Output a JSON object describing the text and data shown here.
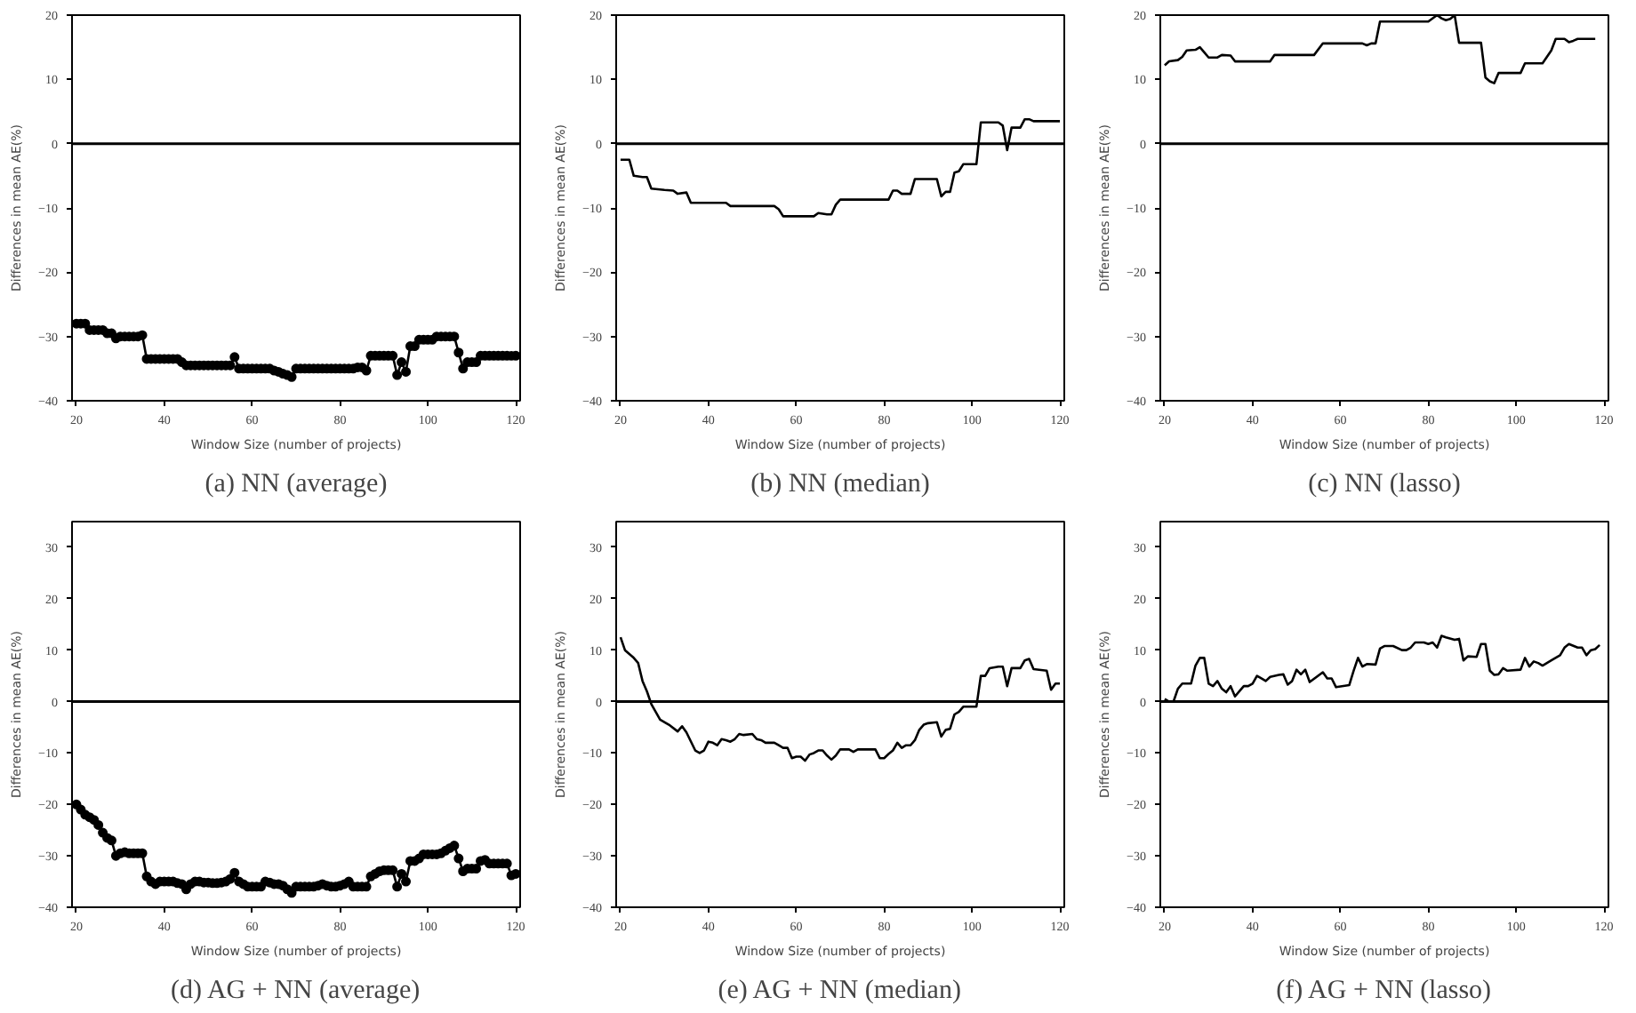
{
  "chart_data": [
    {
      "type": "line",
      "title": "(a) NN (average)",
      "xlabel": "Window Size (number of projects)",
      "ylabel": "Differences in mean AE(%)",
      "marker": "circle",
      "xlim": [
        19,
        121
      ],
      "ylim": [
        -40,
        20
      ],
      "xticks": [
        20,
        40,
        60,
        80,
        100,
        120
      ],
      "yticks": [
        {
          "value": -40,
          "label": "−40"
        },
        {
          "value": -30,
          "label": "−30"
        },
        {
          "value": -20,
          "label": "−20"
        },
        {
          "value": -10,
          "label": "−10"
        },
        0,
        10,
        20
      ],
      "ref_lines": [
        {
          "axis": "y",
          "value": 0,
          "color": "#000000"
        }
      ],
      "series": [
        {
          "color": "#000000",
          "x": [
            20,
            21,
            22,
            23,
            24,
            25,
            26,
            27,
            28,
            29,
            30,
            31,
            32,
            33,
            34,
            35,
            36,
            37,
            38,
            39,
            40,
            41,
            42,
            43,
            44,
            45,
            46,
            47,
            48,
            49,
            50,
            51,
            52,
            53,
            54,
            55,
            56,
            57,
            58,
            59,
            60,
            61,
            62,
            63,
            64,
            65,
            66,
            67,
            68,
            69,
            70,
            71,
            72,
            73,
            74,
            75,
            76,
            77,
            78,
            79,
            80,
            81,
            82,
            83,
            84,
            85,
            86,
            87,
            88,
            89,
            90,
            91,
            92,
            93,
            94,
            95,
            96,
            97,
            98,
            99,
            100,
            101,
            102,
            103,
            104,
            105,
            106,
            107,
            108,
            109,
            110,
            111,
            112,
            113,
            114,
            115,
            116,
            117,
            118,
            119,
            120
          ],
          "values": [
            -28,
            -28,
            -28,
            -29,
            -29,
            -29,
            -29,
            -29.5,
            -29.5,
            -30.3,
            -30,
            -30,
            -30,
            -30,
            -30,
            -29.8,
            -33.5,
            -33.5,
            -33.5,
            -33.5,
            -33.5,
            -33.5,
            -33.5,
            -33.5,
            -34,
            -34.5,
            -34.5,
            -34.5,
            -34.5,
            -34.5,
            -34.5,
            -34.5,
            -34.5,
            -34.5,
            -34.5,
            -34.5,
            -33.2,
            -35,
            -35,
            -35,
            -35,
            -35,
            -35,
            -35,
            -35,
            -35.3,
            -35.5,
            -35.8,
            -36,
            -36.3,
            -35,
            -35,
            -35,
            -35,
            -35,
            -35,
            -35,
            -35,
            -35,
            -35,
            -35,
            -35,
            -35,
            -35,
            -34.8,
            -34.8,
            -35.3,
            -33,
            -33,
            -33,
            -33,
            -33,
            -33,
            -36,
            -34,
            -35.5,
            -31.5,
            -31.5,
            -30.5,
            -30.5,
            -30.5,
            -30.5,
            -30,
            -30,
            -30,
            -30,
            -30,
            -32.5,
            -35,
            -34,
            -34,
            -34,
            -33,
            -33,
            -33,
            -33,
            -33,
            -33,
            -33,
            -33,
            -33
          ]
        }
      ]
    },
    {
      "type": "line",
      "title": "(b) NN (median)",
      "xlabel": "Window Size (number of projects)",
      "ylabel": "Differences in mean AE(%)",
      "xlim": [
        19,
        121
      ],
      "ylim": [
        -40,
        20
      ],
      "xticks": [
        20,
        40,
        60,
        80,
        100,
        120
      ],
      "yticks": [
        {
          "value": -40,
          "label": "−40"
        },
        {
          "value": -30,
          "label": "−30"
        },
        {
          "value": -20,
          "label": "−20"
        },
        {
          "value": -10,
          "label": "−10"
        },
        0,
        10,
        20
      ],
      "ref_lines": [
        {
          "axis": "y",
          "value": 0,
          "color": "#000000"
        }
      ],
      "series": [
        {
          "color": "#000000",
          "x": [
            20,
            22,
            23,
            25,
            26,
            27,
            30,
            32,
            33,
            35,
            36,
            44,
            45,
            55,
            56,
            57,
            64,
            65,
            67,
            68,
            69,
            70,
            81,
            82,
            83,
            84,
            86,
            87,
            92,
            93,
            94,
            95,
            96,
            97,
            98,
            101,
            102,
            106,
            107,
            108,
            109,
            111,
            112,
            113,
            114,
            120
          ],
          "values": [
            -2.5,
            -2.5,
            -5,
            -5.2,
            -5.2,
            -7,
            -7.2,
            -7.3,
            -7.8,
            -7.6,
            -9.2,
            -9.2,
            -9.7,
            -9.7,
            -10.2,
            -11.3,
            -11.3,
            -10.8,
            -11,
            -11,
            -9.5,
            -8.7,
            -8.7,
            -7.3,
            -7.3,
            -7.8,
            -7.8,
            -5.5,
            -5.5,
            -8.2,
            -7.5,
            -7.5,
            -4.5,
            -4.3,
            -3.2,
            -3.2,
            3.3,
            3.3,
            2.8,
            -1,
            2.5,
            2.5,
            3.8,
            3.8,
            3.5,
            3.5
          ]
        }
      ]
    },
    {
      "type": "line",
      "title": "(c) NN (lasso)",
      "xlabel": "Window Size (number of projects)",
      "ylabel": "Differences in mean AE(%)",
      "xlim": [
        19,
        121
      ],
      "ylim": [
        -40,
        20
      ],
      "xticks": [
        20,
        40,
        60,
        80,
        100,
        120
      ],
      "yticks": [
        {
          "value": -40,
          "label": "−40"
        },
        {
          "value": -30,
          "label": "−30"
        },
        {
          "value": -20,
          "label": "−20"
        },
        {
          "value": -10,
          "label": "−10"
        },
        0,
        10,
        20
      ],
      "ref_lines": [
        {
          "axis": "y",
          "value": 0,
          "color": "#000000"
        }
      ],
      "series": [
        {
          "color": "#000000",
          "x": [
            20,
            21,
            23,
            24,
            25,
            27,
            28,
            29,
            30,
            32,
            33,
            35,
            36,
            44,
            45,
            54,
            56,
            65,
            66,
            67,
            68,
            69,
            80,
            82,
            83,
            84,
            85,
            86,
            87,
            92,
            93,
            94,
            95,
            96,
            101,
            102,
            106,
            108,
            109,
            111,
            112,
            113,
            114,
            118
          ],
          "values": [
            12.2,
            12.8,
            13,
            13.5,
            14.5,
            14.6,
            15,
            14.2,
            13.4,
            13.4,
            13.8,
            13.7,
            12.8,
            12.8,
            13.8,
            13.8,
            15.6,
            15.6,
            15.3,
            15.6,
            15.6,
            19,
            19,
            20,
            19.5,
            19.2,
            19.4,
            20,
            15.7,
            15.7,
            10.3,
            9.7,
            9.4,
            11,
            11,
            12.5,
            12.5,
            14.5,
            16.3,
            16.3,
            15.8,
            16,
            16.3,
            16.3
          ]
        }
      ]
    },
    {
      "type": "line",
      "title": "(d) AG + NN (average)",
      "xlabel": "Window Size (number of projects)",
      "ylabel": "Differences in mean AE(%)",
      "marker": "circle",
      "xlim": [
        19,
        121
      ],
      "ylim": [
        -40,
        35
      ],
      "xticks": [
        20,
        40,
        60,
        80,
        100,
        120
      ],
      "yticks": [
        {
          "value": -40,
          "label": "−40"
        },
        {
          "value": -30,
          "label": "−30"
        },
        {
          "value": -20,
          "label": "−20"
        },
        {
          "value": -10,
          "label": "−10"
        },
        0,
        10,
        20,
        30
      ],
      "ref_lines": [
        {
          "axis": "y",
          "value": 0,
          "color": "#000000"
        }
      ],
      "series": [
        {
          "color": "#000000",
          "x": [
            20,
            21,
            22,
            23,
            24,
            25,
            26,
            27,
            28,
            29,
            30,
            31,
            32,
            33,
            34,
            35,
            36,
            37,
            38,
            39,
            40,
            41,
            42,
            43,
            44,
            45,
            46,
            47,
            48,
            49,
            50,
            51,
            52,
            53,
            54,
            55,
            56,
            57,
            58,
            59,
            60,
            61,
            62,
            63,
            64,
            65,
            66,
            67,
            68,
            69,
            70,
            71,
            72,
            73,
            74,
            75,
            76,
            77,
            78,
            79,
            80,
            81,
            82,
            83,
            84,
            85,
            86,
            87,
            88,
            89,
            90,
            91,
            92,
            93,
            94,
            95,
            96,
            97,
            98,
            99,
            100,
            101,
            102,
            103,
            104,
            105,
            106,
            107,
            108,
            109,
            110,
            111,
            112,
            113,
            114,
            115,
            116,
            117,
            118,
            119,
            120
          ],
          "values": [
            -20,
            -21,
            -22,
            -22.5,
            -23,
            -24,
            -25.5,
            -26.5,
            -27,
            -30,
            -29.5,
            -29.3,
            -29.5,
            -29.5,
            -29.5,
            -29.5,
            -34,
            -35,
            -35.5,
            -35,
            -35,
            -35,
            -35,
            -35.3,
            -35.5,
            -36.5,
            -35.5,
            -35,
            -35,
            -35.2,
            -35.2,
            -35.3,
            -35.3,
            -35.2,
            -35,
            -34.5,
            -33.3,
            -35,
            -35.5,
            -36,
            -36,
            -36,
            -36,
            -35,
            -35.2,
            -35.5,
            -35.5,
            -35.8,
            -36.5,
            -37.2,
            -36,
            -36,
            -36,
            -36,
            -36,
            -35.8,
            -35.5,
            -35.8,
            -36,
            -36,
            -35.8,
            -35.5,
            -35,
            -36,
            -36,
            -36,
            -36,
            -34,
            -33.5,
            -33,
            -32.8,
            -32.8,
            -32.8,
            -36,
            -33.5,
            -35,
            -31,
            -31,
            -30.5,
            -29.7,
            -29.7,
            -29.7,
            -29.7,
            -29.5,
            -29,
            -28.5,
            -28,
            -30.5,
            -33,
            -32.5,
            -32.5,
            -32.5,
            -31,
            -30.8,
            -31.5,
            -31.5,
            -31.5,
            -31.5,
            -31.5,
            -33.8,
            -33.5
          ]
        }
      ]
    },
    {
      "type": "line",
      "title": "(e) AG + NN (median)",
      "xlabel": "Window Size (number of projects)",
      "ylabel": "Differences in mean AE(%)",
      "xlim": [
        19,
        121
      ],
      "ylim": [
        -40,
        35
      ],
      "xticks": [
        20,
        40,
        60,
        80,
        100,
        120
      ],
      "yticks": [
        {
          "value": -40,
          "label": "−40"
        },
        {
          "value": -30,
          "label": "−30"
        },
        {
          "value": -20,
          "label": "−20"
        },
        {
          "value": -10,
          "label": "−10"
        },
        0,
        10,
        20,
        30
      ],
      "ref_lines": [
        {
          "axis": "y",
          "value": 0,
          "color": "#000000"
        }
      ],
      "series": [
        {
          "color": "#000000",
          "x": [
            20,
            21,
            23,
            24,
            25,
            26,
            27,
            28,
            29,
            31,
            33,
            34,
            35,
            37,
            38,
            39,
            40,
            41,
            42,
            43,
            44,
            45,
            46,
            47,
            48,
            50,
            51,
            52,
            53,
            55,
            56,
            57,
            58,
            59,
            60,
            61,
            62,
            63,
            64,
            65,
            66,
            67,
            68,
            69,
            70,
            72,
            73,
            74,
            78,
            79,
            80,
            81,
            82,
            83,
            84,
            85,
            86,
            87,
            88,
            89,
            90,
            92,
            93,
            94,
            95,
            96,
            97,
            98,
            101,
            102,
            103,
            104,
            106,
            107,
            108,
            109,
            111,
            112,
            113,
            114,
            117,
            118,
            119,
            120
          ],
          "values": [
            12.5,
            10,
            8.5,
            7.5,
            4,
            2,
            -0.5,
            -2,
            -3.5,
            -4.5,
            -5.8,
            -4.8,
            -6,
            -9.5,
            -10,
            -9.5,
            -7.8,
            -8,
            -8.5,
            -7.3,
            -7.5,
            -7.8,
            -7.3,
            -6.3,
            -6.5,
            -6.3,
            -7.3,
            -7.5,
            -8,
            -8,
            -8.5,
            -9,
            -9,
            -11,
            -10.7,
            -10.7,
            -11.5,
            -10.3,
            -10,
            -9.5,
            -9.5,
            -10.5,
            -11.3,
            -10.5,
            -9.3,
            -9.3,
            -9.8,
            -9.3,
            -9.3,
            -11,
            -11,
            -10.2,
            -9.5,
            -8,
            -9,
            -8.5,
            -8.5,
            -7.5,
            -5.5,
            -4.5,
            -4.2,
            -4,
            -6.8,
            -5.5,
            -5.3,
            -2.5,
            -2,
            -1,
            -1,
            5,
            5,
            6.5,
            6.8,
            6.8,
            3,
            6.5,
            6.5,
            8,
            8.3,
            6.3,
            6,
            2.3,
            3.5,
            3.5
          ]
        }
      ]
    },
    {
      "type": "line",
      "title": "(f) AG + NN (lasso)",
      "xlabel": "Window Size (number of projects)",
      "ylabel": "Differences in mean AE(%)",
      "xlim": [
        19,
        121
      ],
      "ylim": [
        -40,
        35
      ],
      "xticks": [
        20,
        40,
        60,
        80,
        100,
        120
      ],
      "yticks": [
        {
          "value": -40,
          "label": "−40"
        },
        {
          "value": -30,
          "label": "−30"
        },
        {
          "value": -20,
          "label": "−20"
        },
        {
          "value": -10,
          "label": "−10"
        },
        0,
        10,
        20,
        30
      ],
      "ref_lines": [
        {
          "axis": "y",
          "value": 0,
          "color": "#000000"
        }
      ],
      "series": [
        {
          "color": "#000000",
          "x": [
            20,
            21,
            22,
            23,
            24,
            26,
            27,
            28,
            29,
            30,
            31,
            32,
            33,
            34,
            35,
            36,
            37,
            38,
            39,
            40,
            41,
            42,
            43,
            44,
            46,
            47,
            48,
            49,
            50,
            51,
            52,
            53,
            56,
            57,
            58,
            59,
            62,
            63,
            64,
            65,
            66,
            68,
            69,
            70,
            72,
            74,
            75,
            76,
            77,
            79,
            80,
            81,
            82,
            83,
            84,
            86,
            87,
            88,
            89,
            91,
            92,
            93,
            94,
            95,
            96,
            97,
            98,
            101,
            102,
            103,
            104,
            105,
            106,
            108,
            110,
            111,
            112,
            114,
            115,
            116,
            117,
            118,
            119
          ],
          "values": [
            0.5,
            0,
            0,
            2.5,
            3.5,
            3.5,
            7,
            8.5,
            8.5,
            3.5,
            3,
            4,
            2.5,
            1.8,
            3,
            1,
            2,
            3,
            3,
            3.5,
            5,
            4.5,
            4,
            4.8,
            5.2,
            5.3,
            3.3,
            4,
            6.2,
            5.3,
            6.2,
            3.8,
            5.7,
            4.5,
            4.5,
            2.8,
            3.2,
            6,
            8.5,
            6.8,
            7.3,
            7.2,
            10.3,
            10.8,
            10.8,
            10,
            10,
            10.5,
            11.5,
            11.5,
            11.2,
            11.5,
            10.5,
            12.8,
            12.5,
            12,
            12.2,
            8,
            8.8,
            8.7,
            11.2,
            11.2,
            6,
            5.2,
            5.3,
            6.5,
            6,
            6.2,
            8.5,
            6.8,
            7.8,
            7.5,
            7,
            8,
            9,
            10.5,
            11.2,
            10.5,
            10.5,
            9,
            10,
            10.2,
            11
          ]
        }
      ]
    }
  ]
}
